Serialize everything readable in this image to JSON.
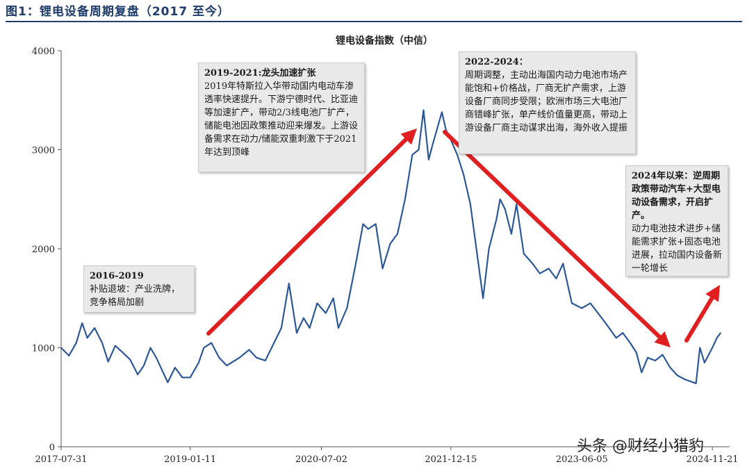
{
  "figure": {
    "title": "图1：锂电设备周期复盘（2017 至今）",
    "watermark": "头条 @财经小猎豹"
  },
  "chart_data": {
    "type": "line",
    "title": "锂电设备指数（中信）",
    "xlabel": "",
    "ylabel": "",
    "ylim": [
      0,
      4000
    ],
    "yticks": [
      0,
      1000,
      2000,
      3000,
      4000
    ],
    "xlim": [
      "2017-07-31",
      "2025-01-31"
    ],
    "xtick_labels": [
      "2017-07-31",
      "2019-01-11",
      "2020-07-02",
      "2021-12-15",
      "2023-06-05",
      "2024-11-21"
    ],
    "grid": false,
    "series": [
      {
        "color": "#2b5797",
        "points": [
          [
            "2017-07-31",
            1000
          ],
          [
            "2017-09-01",
            920
          ],
          [
            "2017-10-01",
            1050
          ],
          [
            "2017-10-25",
            1250
          ],
          [
            "2017-11-15",
            1100
          ],
          [
            "2017-12-15",
            1200
          ],
          [
            "2018-01-15",
            1050
          ],
          [
            "2018-02-09",
            860
          ],
          [
            "2018-03-10",
            1020
          ],
          [
            "2018-04-10",
            950
          ],
          [
            "2018-05-10",
            880
          ],
          [
            "2018-06-10",
            730
          ],
          [
            "2018-07-05",
            820
          ],
          [
            "2018-08-01",
            1000
          ],
          [
            "2018-08-25",
            900
          ],
          [
            "2018-10-11",
            650
          ],
          [
            "2018-11-10",
            800
          ],
          [
            "2018-12-10",
            700
          ],
          [
            "2019-01-11",
            700
          ],
          [
            "2019-02-15",
            850
          ],
          [
            "2019-03-08",
            1000
          ],
          [
            "2019-04-08",
            1050
          ],
          [
            "2019-05-10",
            900
          ],
          [
            "2019-06-10",
            820
          ],
          [
            "2019-08-01",
            900
          ],
          [
            "2019-09-10",
            980
          ],
          [
            "2019-10-10",
            900
          ],
          [
            "2019-11-15",
            870
          ],
          [
            "2019-12-15",
            1020
          ],
          [
            "2020-01-20",
            1200
          ],
          [
            "2020-02-20",
            1650
          ],
          [
            "2020-03-23",
            1150
          ],
          [
            "2020-04-20",
            1300
          ],
          [
            "2020-05-15",
            1200
          ],
          [
            "2020-06-15",
            1450
          ],
          [
            "2020-07-02",
            1400
          ],
          [
            "2020-07-20",
            1350
          ],
          [
            "2020-08-20",
            1500
          ],
          [
            "2020-09-10",
            1200
          ],
          [
            "2020-10-15",
            1400
          ],
          [
            "2020-11-20",
            1850
          ],
          [
            "2020-12-20",
            2250
          ],
          [
            "2021-01-10",
            2200
          ],
          [
            "2021-02-10",
            2250
          ],
          [
            "2021-03-10",
            1800
          ],
          [
            "2021-04-10",
            2050
          ],
          [
            "2021-05-10",
            2150
          ],
          [
            "2021-06-10",
            2500
          ],
          [
            "2021-07-10",
            2950
          ],
          [
            "2021-08-05",
            3000
          ],
          [
            "2021-08-25",
            3400
          ],
          [
            "2021-09-15",
            2900
          ],
          [
            "2021-10-01",
            3050
          ],
          [
            "2021-11-08",
            3380
          ],
          [
            "2021-11-25",
            3200
          ],
          [
            "2021-12-15",
            3100
          ],
          [
            "2022-01-10",
            2950
          ],
          [
            "2022-02-05",
            2750
          ],
          [
            "2022-03-05",
            2450
          ],
          [
            "2022-04-26",
            1500
          ],
          [
            "2022-05-20",
            2000
          ],
          [
            "2022-06-20",
            2300
          ],
          [
            "2022-07-05",
            2500
          ],
          [
            "2022-07-25",
            2400
          ],
          [
            "2022-08-20",
            2150
          ],
          [
            "2022-09-10",
            2450
          ],
          [
            "2022-10-10",
            1950
          ],
          [
            "2022-11-15",
            1850
          ],
          [
            "2022-12-15",
            1750
          ],
          [
            "2023-01-20",
            1800
          ],
          [
            "2023-02-20",
            1700
          ],
          [
            "2023-03-20",
            1850
          ],
          [
            "2023-04-25",
            1450
          ],
          [
            "2023-06-05",
            1400
          ],
          [
            "2023-07-10",
            1450
          ],
          [
            "2023-08-10",
            1350
          ],
          [
            "2023-09-10",
            1250
          ],
          [
            "2023-10-24",
            1100
          ],
          [
            "2023-11-20",
            1150
          ],
          [
            "2023-12-20",
            1050
          ],
          [
            "2024-01-15",
            950
          ],
          [
            "2024-02-05",
            750
          ],
          [
            "2024-03-01",
            900
          ],
          [
            "2024-04-01",
            870
          ],
          [
            "2024-05-01",
            930
          ],
          [
            "2024-06-01",
            800
          ],
          [
            "2024-07-01",
            720
          ],
          [
            "2024-08-01",
            680
          ],
          [
            "2024-09-15",
            640
          ],
          [
            "2024-10-01",
            1000
          ],
          [
            "2024-10-20",
            850
          ],
          [
            "2024-11-21",
            1000
          ],
          [
            "2024-12-10",
            1100
          ],
          [
            "2024-12-25",
            1150
          ]
        ]
      }
    ]
  },
  "annotations": [
    {
      "id": "ann-2016",
      "head": "2016-2019",
      "body": "补贴退坡：产业洗牌，竞争格局加剧"
    },
    {
      "id": "ann-2019",
      "head": "2019-2021:龙头加速扩张",
      "body": "2019年特斯拉入华带动国内电动车渗透率快速提升。下游宁德时代、比亚迪等加速扩产，带动2/3线电池厂扩产，储能电池因政策推动迎来爆发。上游设备需求在动力/储能双重刺激下于2021年达到顶峰"
    },
    {
      "id": "ann-2022",
      "head": "2022-2024：",
      "body": "周期调整，主动出海国内动力电池市场产能饱和+价格战，厂商无扩产需求，上游设备厂商同步受限；欧洲市场三大电池厂商错峰扩张，单产线价值量更高，带动上游设备厂商主动谋求出海，海外收入提振"
    },
    {
      "id": "ann-2024",
      "head": "2024年以来：逆周期政策带动汽车+大型电动设备需求，开启扩产。",
      "body": "动力电池技术进步+储能需求扩张+固态电池进展，拉动国内设备新一轮增长"
    }
  ],
  "arrows": [
    {
      "id": "arrow-up-2019-2021",
      "color": "#e02020"
    },
    {
      "id": "arrow-down-2022-2024",
      "color": "#e02020"
    },
    {
      "id": "arrow-up-2024",
      "color": "#e02020"
    }
  ]
}
